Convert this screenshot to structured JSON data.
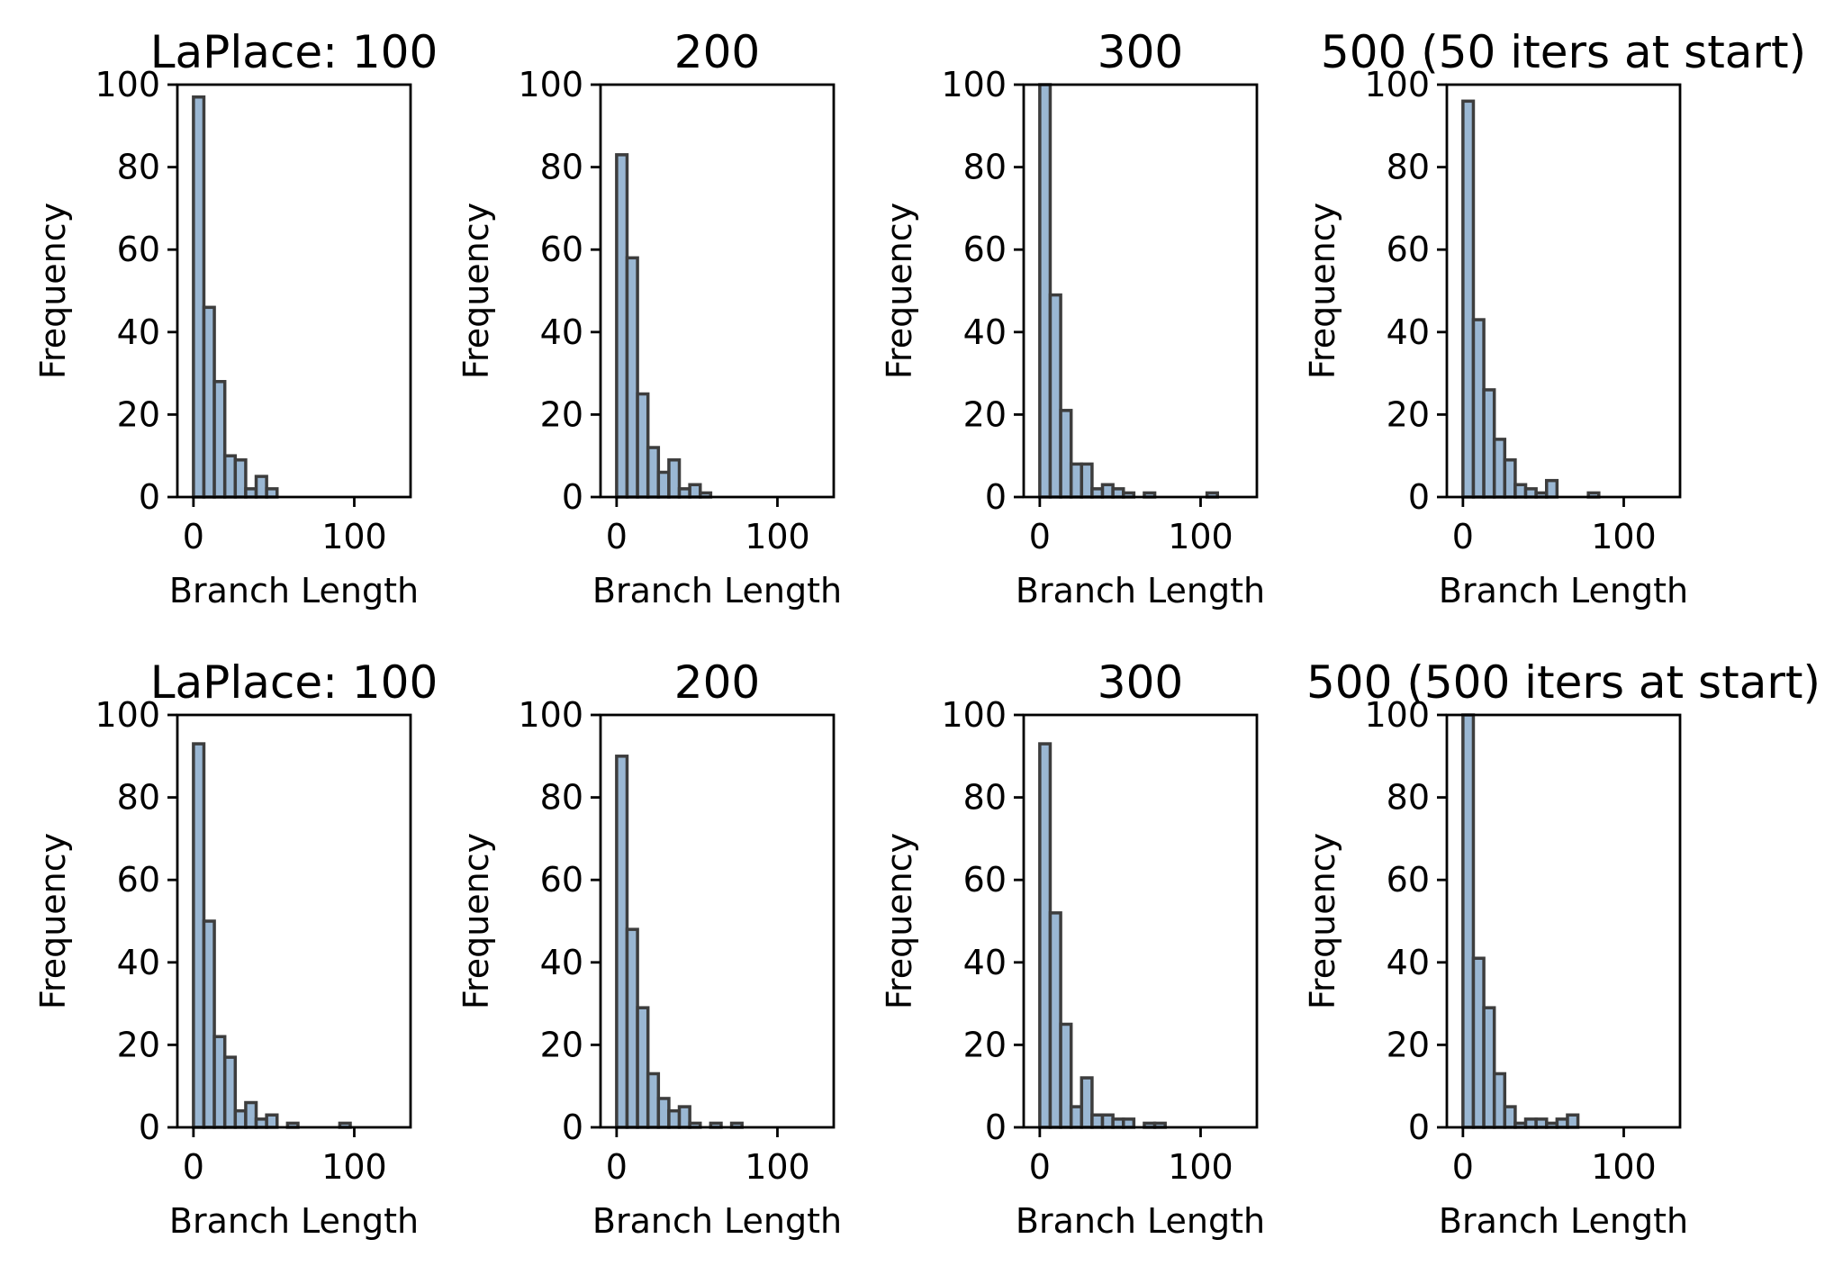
{
  "chart_data": [
    {
      "type": "bar",
      "title": "LaPlace: 100",
      "xlabel": "Branch Length",
      "ylabel": "Frequency",
      "xlim": [
        -10,
        135
      ],
      "ylim": [
        0,
        100
      ],
      "xticks": [
        0,
        100
      ],
      "yticks": [
        0,
        20,
        40,
        60,
        80,
        100
      ],
      "bin_width": 6.5,
      "bin_start": 0,
      "values": [
        97,
        46,
        28,
        10,
        9,
        2,
        5,
        2,
        0,
        0,
        0,
        0,
        0,
        0,
        0,
        0,
        0,
        0,
        0
      ]
    },
    {
      "type": "bar",
      "title": "200",
      "xlabel": "Branch Length",
      "ylabel": "Frequency",
      "xlim": [
        -10,
        135
      ],
      "ylim": [
        0,
        100
      ],
      "xticks": [
        0,
        100
      ],
      "yticks": [
        0,
        20,
        40,
        60,
        80,
        100
      ],
      "bin_width": 6.5,
      "bin_start": 0,
      "values": [
        83,
        58,
        25,
        12,
        6,
        9,
        2,
        3,
        1,
        0,
        0,
        0,
        0,
        0,
        0,
        0,
        0,
        0,
        0
      ]
    },
    {
      "type": "bar",
      "title": "300",
      "xlabel": "Branch Length",
      "ylabel": "Frequency",
      "xlim": [
        -10,
        135
      ],
      "ylim": [
        0,
        100
      ],
      "xticks": [
        0,
        100
      ],
      "yticks": [
        0,
        20,
        40,
        60,
        80,
        100
      ],
      "bin_width": 6.5,
      "bin_start": 0,
      "values": [
        100,
        49,
        21,
        8,
        8,
        2,
        3,
        2,
        1,
        0,
        1,
        0,
        0,
        0,
        0,
        0,
        1,
        0,
        0
      ]
    },
    {
      "type": "bar",
      "title": "500 (50 iters at start)",
      "xlabel": "Branch Length",
      "ylabel": "Frequency",
      "xlim": [
        -10,
        135
      ],
      "ylim": [
        0,
        100
      ],
      "xticks": [
        0,
        100
      ],
      "yticks": [
        0,
        20,
        40,
        60,
        80,
        100
      ],
      "bin_width": 6.5,
      "bin_start": 0,
      "values": [
        96,
        43,
        26,
        14,
        9,
        3,
        2,
        1,
        4,
        0,
        0,
        0,
        1,
        0,
        0,
        0,
        0,
        0,
        0
      ]
    },
    {
      "type": "bar",
      "title": "LaPlace: 100",
      "xlabel": "Branch Length",
      "ylabel": "Frequency",
      "xlim": [
        -10,
        135
      ],
      "ylim": [
        0,
        100
      ],
      "xticks": [
        0,
        100
      ],
      "yticks": [
        0,
        20,
        40,
        60,
        80,
        100
      ],
      "bin_width": 6.5,
      "bin_start": 0,
      "values": [
        93,
        50,
        22,
        17,
        4,
        6,
        2,
        3,
        0,
        1,
        0,
        0,
        0,
        0,
        1,
        0,
        0,
        0,
        0
      ]
    },
    {
      "type": "bar",
      "title": "200",
      "xlabel": "Branch Length",
      "ylabel": "Frequency",
      "xlim": [
        -10,
        135
      ],
      "ylim": [
        0,
        100
      ],
      "xticks": [
        0,
        100
      ],
      "yticks": [
        0,
        20,
        40,
        60,
        80,
        100
      ],
      "bin_width": 6.5,
      "bin_start": 0,
      "values": [
        90,
        48,
        29,
        13,
        7,
        4,
        5,
        1,
        0,
        1,
        0,
        1,
        0,
        0,
        0,
        0,
        0,
        0,
        0
      ]
    },
    {
      "type": "bar",
      "title": "300",
      "xlabel": "Branch Length",
      "ylabel": "Frequency",
      "xlim": [
        -10,
        135
      ],
      "ylim": [
        0,
        100
      ],
      "xticks": [
        0,
        100
      ],
      "yticks": [
        0,
        20,
        40,
        60,
        80,
        100
      ],
      "bin_width": 6.5,
      "bin_start": 0,
      "values": [
        93,
        52,
        25,
        5,
        12,
        3,
        3,
        2,
        2,
        0,
        1,
        1,
        0,
        0,
        0,
        0,
        0,
        0,
        0
      ]
    },
    {
      "type": "bar",
      "title": "500 (500 iters at start)",
      "xlabel": "Branch Length",
      "ylabel": "Frequency",
      "xlim": [
        -10,
        135
      ],
      "ylim": [
        0,
        100
      ],
      "xticks": [
        0,
        100
      ],
      "yticks": [
        0,
        20,
        40,
        60,
        80,
        100
      ],
      "bin_width": 6.5,
      "bin_start": 0,
      "values": [
        100,
        41,
        29,
        13,
        5,
        1,
        2,
        2,
        1,
        2,
        3,
        0,
        0,
        0,
        0,
        0,
        0,
        0,
        0
      ]
    }
  ]
}
